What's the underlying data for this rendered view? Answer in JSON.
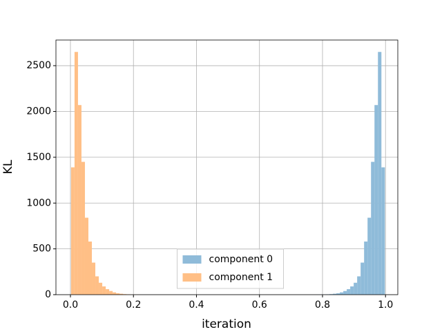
{
  "chart_data": {
    "type": "histogram",
    "xlabel": "iteration",
    "ylabel": "KL",
    "series": [
      {
        "name": "component 0",
        "color": "#8fbbd9",
        "bins": [
          0.778,
          0.789,
          0.8,
          0.811,
          0.822,
          0.833,
          0.844,
          0.855,
          0.866,
          0.877,
          0.888,
          0.899,
          0.91,
          0.921,
          0.932,
          0.943,
          0.954,
          0.965,
          0.976,
          0.987,
          0.998
        ],
        "values": [
          1,
          1,
          2,
          4,
          6,
          10,
          15,
          25,
          40,
          60,
          90,
          130,
          200,
          350,
          580,
          840,
          1450,
          2070,
          2650,
          1390
        ]
      },
      {
        "name": "component 1",
        "color": "#ffbf86",
        "bins": [
          0.002,
          0.013,
          0.024,
          0.035,
          0.046,
          0.057,
          0.068,
          0.079,
          0.09,
          0.101,
          0.112,
          0.123,
          0.134,
          0.145,
          0.156,
          0.167,
          0.178,
          0.189,
          0.2,
          0.211,
          0.222
        ],
        "values": [
          1390,
          2650,
          2070,
          1450,
          840,
          580,
          350,
          200,
          130,
          90,
          60,
          40,
          25,
          15,
          10,
          6,
          4,
          2,
          1,
          1
        ]
      }
    ],
    "xlim": [
      -0.046,
      1.039
    ],
    "xticks": [
      {
        "value": 0,
        "label": "0.0"
      },
      0.2,
      0.4,
      0.6,
      0.8,
      {
        "value": 1,
        "label": "1.0"
      }
    ],
    "ylim": [
      0,
      2780
    ],
    "yticks": [
      0,
      500,
      1000,
      1500,
      2000,
      2500
    ],
    "grid": true,
    "legend": "lower center"
  }
}
